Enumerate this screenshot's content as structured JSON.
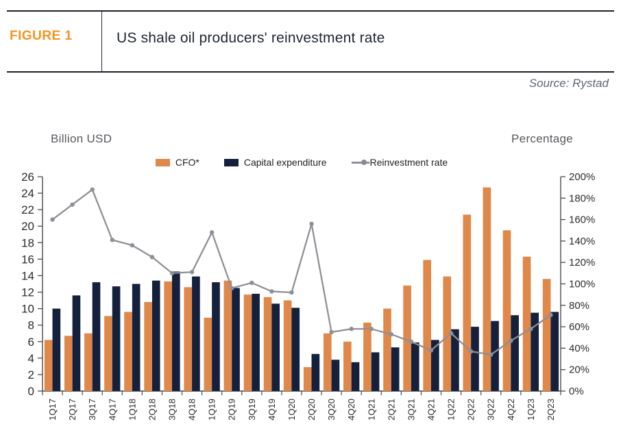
{
  "header": {
    "figure_label": "FIGURE 1",
    "title": "US shale oil producers' reinvestment rate",
    "source": "Source: Rystad"
  },
  "axes": {
    "left_title": "Billion USD",
    "right_title": "Percentage"
  },
  "legend": {
    "cfo": "CFO*",
    "capex": "Capital expenditure",
    "rate": "Reinvestment rate"
  },
  "colors": {
    "cfo_bar": "#E0874A",
    "capex_bar": "#14203C",
    "rate_line": "#8F8F97",
    "accent_orange": "#F7941D",
    "axis": "#4a4a4a",
    "tick_text": "#2b2b2b"
  },
  "chart_data": {
    "type": "bar",
    "subtype": "grouped-bars-with-line",
    "title": "US shale oil producers' reinvestment rate",
    "categories": [
      "1Q17",
      "2Q17",
      "3Q17",
      "4Q17",
      "1Q18",
      "2Q18",
      "3Q18",
      "4Q18",
      "1Q19",
      "2Q19",
      "3Q19",
      "4Q19",
      "1Q20",
      "2Q20",
      "3Q20",
      "4Q20",
      "1Q21",
      "2Q21",
      "3Q21",
      "4Q21",
      "1Q22",
      "2Q22",
      "3Q22",
      "4Q22",
      "1Q23",
      "2Q23"
    ],
    "series": [
      {
        "name": "CFO*",
        "type": "bar",
        "axis": "left",
        "color": "#E0874A",
        "values": [
          6.2,
          6.7,
          7.0,
          9.1,
          9.6,
          10.8,
          13.3,
          12.6,
          8.9,
          13.4,
          11.7,
          11.4,
          11.0,
          2.9,
          7.0,
          6.0,
          8.3,
          10.0,
          12.8,
          15.9,
          13.9,
          21.4,
          24.7,
          19.5,
          16.3,
          13.6
        ]
      },
      {
        "name": "Capital expenditure",
        "type": "bar",
        "axis": "left",
        "color": "#14203C",
        "values": [
          10.0,
          11.6,
          13.2,
          12.7,
          13.0,
          13.4,
          14.5,
          13.9,
          13.2,
          12.5,
          11.8,
          10.6,
          10.1,
          4.5,
          3.8,
          3.5,
          4.7,
          5.3,
          5.9,
          6.2,
          7.5,
          7.8,
          8.5,
          9.2,
          9.5,
          9.6
        ]
      },
      {
        "name": "Reinvestment rate",
        "type": "line",
        "axis": "right",
        "color": "#8F8F97",
        "values": [
          160,
          174,
          188,
          141,
          136,
          125,
          110,
          111,
          148,
          96,
          101,
          93,
          92,
          156,
          55,
          58,
          58,
          53,
          46,
          38,
          54,
          37,
          34,
          47,
          58,
          71
        ]
      }
    ],
    "left_axis": {
      "label": "Billion USD",
      "min": 0,
      "max": 26,
      "tick_step": 2
    },
    "right_axis": {
      "label": "Percentage",
      "min": 0,
      "max": 200,
      "tick_step": 20,
      "unit": "%"
    },
    "grid": false,
    "legend_position": "top-center"
  }
}
